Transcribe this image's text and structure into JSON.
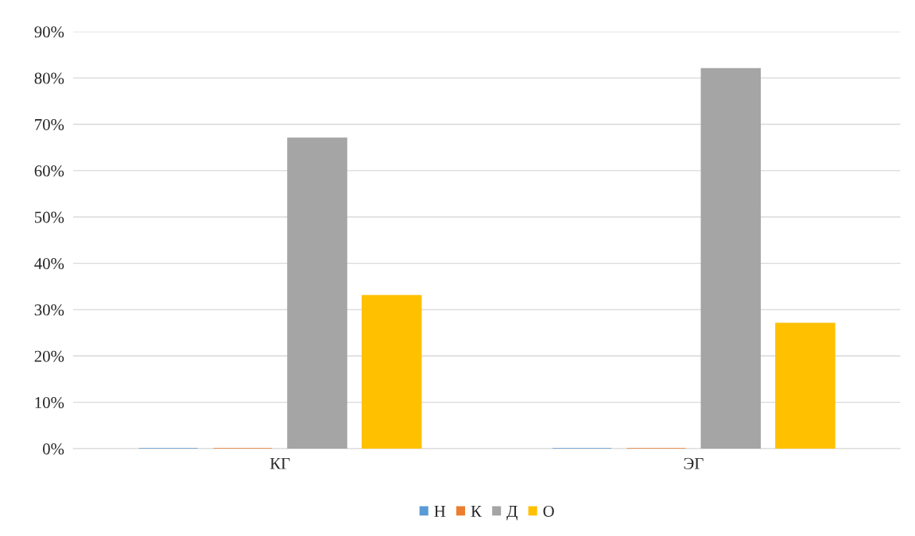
{
  "chart_data": {
    "type": "bar",
    "categories": [
      "КГ",
      "ЭГ"
    ],
    "series": [
      {
        "name": "Н",
        "color": "#5b9bd5",
        "values": [
          0,
          0
        ]
      },
      {
        "name": "К",
        "color": "#ed7d31",
        "values": [
          0,
          0
        ]
      },
      {
        "name": "Д",
        "color": "#a5a5a5",
        "values": [
          67,
          82
        ]
      },
      {
        "name": "О",
        "color": "#ffc000",
        "values": [
          33,
          27
        ]
      }
    ],
    "ylim": [
      0,
      90
    ],
    "yticks": [
      {
        "value": 0,
        "label": "0%"
      },
      {
        "value": 10,
        "label": "10%"
      },
      {
        "value": 20,
        "label": "20%"
      },
      {
        "value": 30,
        "label": "30%"
      },
      {
        "value": 40,
        "label": "40%"
      },
      {
        "value": 50,
        "label": "50%"
      },
      {
        "value": 60,
        "label": "60%"
      },
      {
        "value": 70,
        "label": "70%"
      },
      {
        "value": 80,
        "label": "80%"
      },
      {
        "value": 90,
        "label": "90%"
      }
    ],
    "grid": "y",
    "legend": "bottom"
  }
}
